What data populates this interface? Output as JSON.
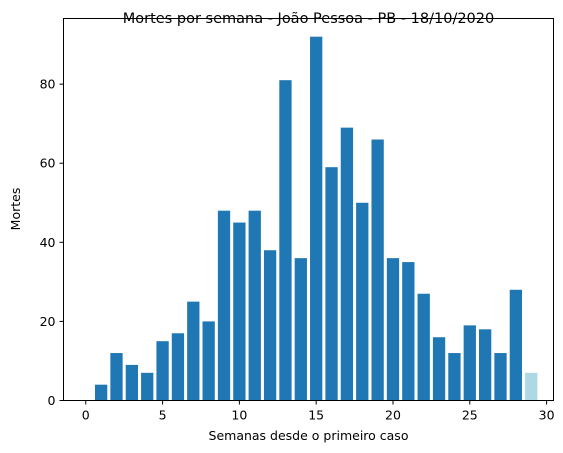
{
  "chart_data": {
    "type": "bar",
    "title": "Mortes por semana - João Pessoa - PB - 18/10/2020",
    "xlabel": "Semanas desde o primeiro caso",
    "ylabel": "Mortes",
    "xlim": [
      -1.45,
      30.45
    ],
    "ylim": [
      0,
      96.6
    ],
    "xticks": [
      0,
      5,
      10,
      15,
      20,
      25,
      30
    ],
    "yticks": [
      0,
      20,
      40,
      60,
      80
    ],
    "x": [
      1,
      2,
      3,
      4,
      5,
      6,
      7,
      8,
      9,
      10,
      11,
      12,
      13,
      14,
      15,
      16,
      17,
      18,
      19,
      20,
      21,
      22,
      23,
      24,
      25,
      26,
      27,
      28,
      29
    ],
    "values": [
      4,
      12,
      9,
      7,
      15,
      17,
      25,
      20,
      48,
      45,
      48,
      38,
      81,
      36,
      92,
      59,
      69,
      50,
      66,
      36,
      35,
      27,
      16,
      12,
      19,
      18,
      12,
      28,
      7
    ],
    "bar_colors": [
      "#1f77b4",
      "#1f77b4",
      "#1f77b4",
      "#1f77b4",
      "#1f77b4",
      "#1f77b4",
      "#1f77b4",
      "#1f77b4",
      "#1f77b4",
      "#1f77b4",
      "#1f77b4",
      "#1f77b4",
      "#1f77b4",
      "#1f77b4",
      "#1f77b4",
      "#1f77b4",
      "#1f77b4",
      "#1f77b4",
      "#1f77b4",
      "#1f77b4",
      "#1f77b4",
      "#1f77b4",
      "#1f77b4",
      "#1f77b4",
      "#1f77b4",
      "#1f77b4",
      "#1f77b4",
      "#1f77b4",
      "#add8e6"
    ],
    "grid": false
  }
}
